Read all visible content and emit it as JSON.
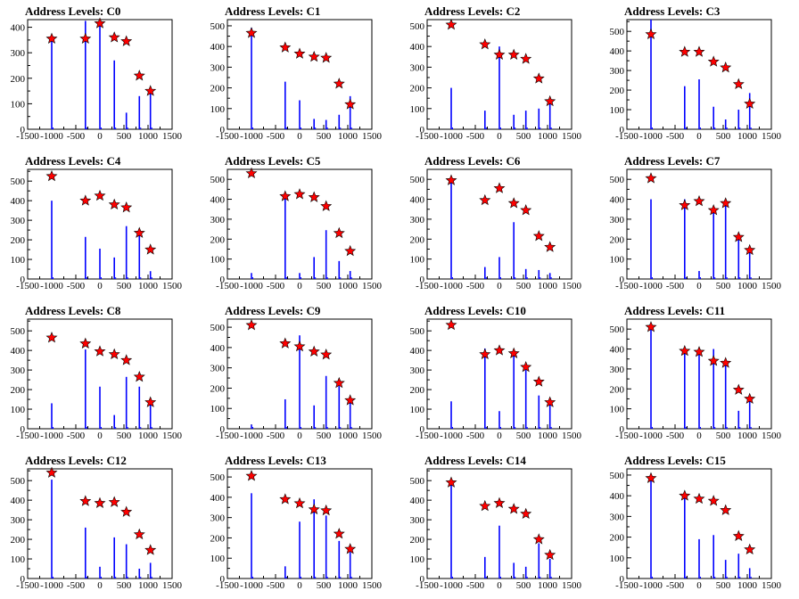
{
  "title_prefix": "Address Levels: ",
  "chart_data": [
    {
      "title": "Address Levels: C0",
      "type": "bar",
      "x_ticks": [
        "-1500",
        "-1000",
        "-500",
        "0",
        "500",
        "1000",
        "1500"
      ],
      "xlim": [
        -1500,
        1500
      ],
      "y_ticks": [
        "0",
        "100",
        "200",
        "300",
        "400"
      ],
      "ylim": [
        0,
        430
      ],
      "peaks_x": [
        -1000,
        -300,
        0,
        300,
        550,
        820,
        1050
      ],
      "bar_heights": [
        350,
        425,
        420,
        270,
        65,
        130,
        150
      ],
      "star_values": [
        355,
        355,
        415,
        360,
        345,
        210,
        150
      ]
    },
    {
      "title": "Address Levels: C1",
      "type": "bar",
      "x_ticks": [
        "-1500",
        "-1000",
        "-500",
        "0",
        "500",
        "1000",
        "1500"
      ],
      "xlim": [
        -1500,
        1500
      ],
      "y_ticks": [
        "0",
        "100",
        "200",
        "300",
        "400",
        "500"
      ],
      "ylim": [
        0,
        530
      ],
      "peaks_x": [
        -1000,
        -300,
        0,
        300,
        550,
        820,
        1050
      ],
      "bar_heights": [
        490,
        230,
        140,
        50,
        45,
        70,
        160
      ],
      "star_values": [
        465,
        395,
        365,
        350,
        345,
        220,
        120
      ]
    },
    {
      "title": "Address Levels: C2",
      "type": "bar",
      "x_ticks": [
        "-1500",
        "-1000",
        "-500",
        "0",
        "500",
        "1000",
        "1500"
      ],
      "xlim": [
        -1500,
        1500
      ],
      "y_ticks": [
        "0",
        "100",
        "200",
        "300",
        "400",
        "500"
      ],
      "ylim": [
        0,
        530
      ],
      "peaks_x": [
        -1000,
        -300,
        0,
        300,
        550,
        820,
        1050
      ],
      "bar_heights": [
        200,
        90,
        400,
        70,
        90,
        100,
        140
      ],
      "star_values": [
        505,
        410,
        360,
        360,
        340,
        245,
        135
      ]
    },
    {
      "title": "Address Levels: C3",
      "type": "bar",
      "x_ticks": [
        "-1500",
        "-1000",
        "-500",
        "0",
        "500",
        "1000",
        "1500"
      ],
      "xlim": [
        -1500,
        1500
      ],
      "y_ticks": [
        "0",
        "100",
        "200",
        "300",
        "400",
        "500"
      ],
      "ylim": [
        0,
        560
      ],
      "peaks_x": [
        -1000,
        -300,
        0,
        300,
        550,
        820,
        1050
      ],
      "bar_heights": [
        560,
        220,
        255,
        115,
        50,
        100,
        185
      ],
      "star_values": [
        485,
        395,
        395,
        345,
        315,
        230,
        130
      ]
    },
    {
      "title": "Address Levels: C4",
      "type": "bar",
      "x_ticks": [
        "-1500",
        "-1000",
        "-500",
        "0",
        "500",
        "1000",
        "1500"
      ],
      "xlim": [
        -1500,
        1500
      ],
      "y_ticks": [
        "0",
        "100",
        "200",
        "300",
        "400",
        "500"
      ],
      "ylim": [
        0,
        560
      ],
      "peaks_x": [
        -1000,
        -300,
        0,
        300,
        550,
        820,
        1050
      ],
      "bar_heights": [
        400,
        215,
        155,
        110,
        270,
        245,
        40
      ],
      "star_values": [
        525,
        400,
        425,
        380,
        365,
        235,
        150
      ]
    },
    {
      "title": "Address Levels: C5",
      "type": "bar",
      "x_ticks": [
        "-1500",
        "-1000",
        "-500",
        "0",
        "500",
        "1000",
        "1500"
      ],
      "xlim": [
        -1500,
        1500
      ],
      "y_ticks": [
        "0",
        "100",
        "200",
        "300",
        "400",
        "500"
      ],
      "ylim": [
        0,
        550
      ],
      "peaks_x": [
        -1000,
        -300,
        0,
        300,
        550,
        820,
        1050
      ],
      "bar_heights": [
        30,
        430,
        30,
        110,
        245,
        90,
        40
      ],
      "star_values": [
        530,
        415,
        425,
        410,
        365,
        230,
        140
      ]
    },
    {
      "title": "Address Levels: C6",
      "type": "bar",
      "x_ticks": [
        "-1500",
        "-1000",
        "-500",
        "0",
        "500",
        "1000",
        "1500"
      ],
      "xlim": [
        -1500,
        1500
      ],
      "y_ticks": [
        "0",
        "100",
        "200",
        "300",
        "400",
        "500"
      ],
      "ylim": [
        0,
        550
      ],
      "peaks_x": [
        -1000,
        -300,
        0,
        300,
        550,
        820,
        1050
      ],
      "bar_heights": [
        500,
        60,
        110,
        285,
        50,
        45,
        30
      ],
      "star_values": [
        495,
        395,
        455,
        380,
        345,
        215,
        160
      ]
    },
    {
      "title": "Address Levels: C7",
      "type": "bar",
      "x_ticks": [
        "-1500",
        "-1000",
        "-500",
        "0",
        "500",
        "1000",
        "1500"
      ],
      "xlim": [
        -1500,
        1500
      ],
      "y_ticks": [
        "0",
        "100",
        "200",
        "300",
        "400",
        "500"
      ],
      "ylim": [
        0,
        550
      ],
      "peaks_x": [
        -1000,
        -300,
        0,
        300,
        550,
        820,
        1050
      ],
      "bar_heights": [
        400,
        400,
        40,
        340,
        370,
        220,
        150
      ],
      "star_values": [
        505,
        370,
        390,
        345,
        380,
        210,
        145
      ]
    },
    {
      "title": "Address Levels: C8",
      "type": "bar",
      "x_ticks": [
        "-1500",
        "-1000",
        "-500",
        "0",
        "500",
        "1000",
        "1500"
      ],
      "xlim": [
        -1500,
        1500
      ],
      "y_ticks": [
        "0",
        "100",
        "200",
        "300",
        "400",
        "500"
      ],
      "ylim": [
        0,
        560
      ],
      "peaks_x": [
        -1000,
        -300,
        0,
        300,
        550,
        820,
        1050
      ],
      "bar_heights": [
        130,
        405,
        215,
        70,
        265,
        215,
        150
      ],
      "star_values": [
        465,
        435,
        395,
        380,
        350,
        265,
        135
      ]
    },
    {
      "title": "Address Levels: C9",
      "type": "bar",
      "x_ticks": [
        "-1500",
        "-1000",
        "-500",
        "0",
        "500",
        "1000",
        "1500"
      ],
      "xlim": [
        -1500,
        1500
      ],
      "y_ticks": [
        "0",
        "100",
        "200",
        "300",
        "400",
        "500"
      ],
      "ylim": [
        0,
        540
      ],
      "peaks_x": [
        -1000,
        -300,
        0,
        300,
        550,
        820,
        1050
      ],
      "bar_heights": [
        20,
        145,
        460,
        115,
        260,
        210,
        140
      ],
      "star_values": [
        510,
        420,
        405,
        380,
        365,
        225,
        140
      ]
    },
    {
      "title": "Address Levels: C10",
      "type": "bar",
      "x_ticks": [
        "-1500",
        "-1000",
        "-500",
        "0",
        "500",
        "1000",
        "1500"
      ],
      "xlim": [
        -1500,
        1500
      ],
      "y_ticks": [
        "0",
        "100",
        "200",
        "300",
        "400",
        "500"
      ],
      "ylim": [
        0,
        560
      ],
      "peaks_x": [
        -1000,
        -300,
        0,
        300,
        550,
        820,
        1050
      ],
      "bar_heights": [
        140,
        410,
        90,
        380,
        300,
        170,
        140
      ],
      "star_values": [
        530,
        380,
        400,
        385,
        315,
        240,
        135
      ]
    },
    {
      "title": "Address Levels: C11",
      "type": "bar",
      "x_ticks": [
        "-1500",
        "-1000",
        "-500",
        "0",
        "500",
        "1000",
        "1500"
      ],
      "xlim": [
        -1500,
        1500
      ],
      "y_ticks": [
        "0",
        "100",
        "200",
        "300",
        "400",
        "500"
      ],
      "ylim": [
        0,
        550
      ],
      "peaks_x": [
        -1000,
        -300,
        0,
        300,
        550,
        820,
        1050
      ],
      "bar_heights": [
        505,
        395,
        380,
        400,
        330,
        90,
        150
      ],
      "star_values": [
        510,
        390,
        385,
        340,
        330,
        195,
        150
      ]
    },
    {
      "title": "Address Levels: C12",
      "type": "bar",
      "x_ticks": [
        "-1500",
        "-1000",
        "-500",
        "0",
        "500",
        "1000",
        "1500"
      ],
      "xlim": [
        -1500,
        1500
      ],
      "y_ticks": [
        "0",
        "100",
        "200",
        "300",
        "400",
        "500"
      ],
      "ylim": [
        0,
        560
      ],
      "peaks_x": [
        -1000,
        -300,
        0,
        300,
        550,
        820,
        1050
      ],
      "bar_heights": [
        505,
        260,
        60,
        210,
        175,
        50,
        80
      ],
      "star_values": [
        540,
        395,
        385,
        390,
        340,
        225,
        145
      ]
    },
    {
      "title": "Address Levels: C13",
      "type": "bar",
      "x_ticks": [
        "-1500",
        "-1000",
        "-500",
        "0",
        "500",
        "1000",
        "1500"
      ],
      "xlim": [
        -1500,
        1500
      ],
      "y_ticks": [
        "0",
        "100",
        "200",
        "300",
        "400",
        "500"
      ],
      "ylim": [
        0,
        540
      ],
      "peaks_x": [
        -1000,
        -300,
        0,
        300,
        550,
        820,
        1050
      ],
      "bar_heights": [
        420,
        60,
        280,
        390,
        310,
        185,
        130
      ],
      "star_values": [
        505,
        390,
        370,
        340,
        335,
        220,
        145
      ]
    },
    {
      "title": "Address Levels: C14",
      "type": "bar",
      "x_ticks": [
        "-1500",
        "-1000",
        "-500",
        "0",
        "500",
        "1000",
        "1500"
      ],
      "xlim": [
        -1500,
        1500
      ],
      "y_ticks": [
        "0",
        "100",
        "200",
        "300",
        "400",
        "500"
      ],
      "ylim": [
        0,
        560
      ],
      "peaks_x": [
        -1000,
        -300,
        0,
        300,
        550,
        820,
        1050
      ],
      "bar_heights": [
        500,
        110,
        270,
        80,
        60,
        180,
        100
      ],
      "star_values": [
        490,
        370,
        385,
        355,
        330,
        200,
        120
      ]
    },
    {
      "title": "Address Levels: C15",
      "type": "bar",
      "x_ticks": [
        "-1500",
        "-1000",
        "-500",
        "0",
        "500",
        "1000",
        "1500"
      ],
      "xlim": [
        -1500,
        1500
      ],
      "y_ticks": [
        "0",
        "100",
        "200",
        "300",
        "400",
        "500"
      ],
      "ylim": [
        0,
        530
      ],
      "peaks_x": [
        -1000,
        -300,
        0,
        300,
        550,
        820,
        1050
      ],
      "bar_heights": [
        505,
        390,
        190,
        210,
        90,
        120,
        50
      ],
      "star_values": [
        485,
        400,
        385,
        375,
        330,
        205,
        140
      ]
    }
  ],
  "colors": {
    "bar": "#0000ff",
    "star": "#ff0000",
    "axis": "#000000"
  },
  "icons": {
    "marker": "star-icon"
  }
}
